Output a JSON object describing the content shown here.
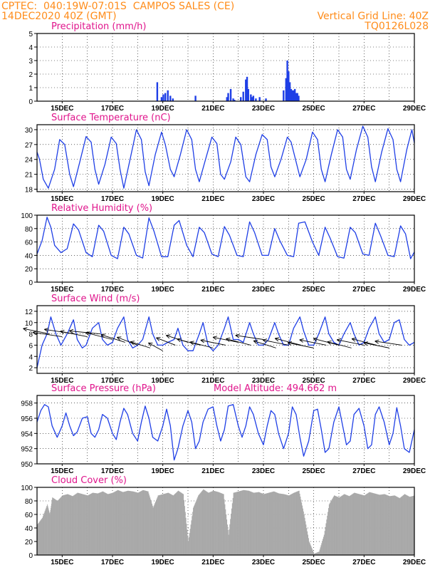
{
  "header": {
    "line1": "CPTEC:  040:19W-07:01S  CAMPOS SALES (CE)",
    "line2": "14DEC2020 40Z (GMT)",
    "grid_note": "Vertical Grid Line: 40Z",
    "code": "TQ0126L028"
  },
  "model_altitude": "Model Altitude: 494.662 m",
  "date_labels": [
    "15DEC",
    "17DEC",
    "19DEC",
    "21DEC",
    "23DEC",
    "25DEC",
    "27DEC",
    "29DEC"
  ],
  "colors": {
    "line": "#1f3fe6",
    "cloud": "#a9a9a9",
    "title": "#e0158c",
    "header": "#ff8c1a",
    "grid": "#000000"
  },
  "chart_data": [
    {
      "id": "precipitation",
      "type": "bar",
      "title": "Precipitation (mm/h)",
      "x_unit": "days since 14DEC2020",
      "xlim": [
        0,
        15
      ],
      "ylim": [
        0,
        5
      ],
      "yticks": [
        0,
        1,
        2,
        3,
        4,
        5
      ],
      "grid": true,
      "x": [
        4.78,
        4.95,
        5.02,
        5.1,
        5.2,
        5.3,
        5.4,
        6.3,
        7.55,
        7.6,
        7.7,
        7.8,
        7.85,
        8.1,
        8.2,
        8.3,
        8.35,
        8.4,
        8.5,
        8.55,
        8.6,
        8.7,
        8.85,
        9.1,
        9.8,
        9.9,
        9.95,
        10.0,
        10.05,
        10.1,
        10.15,
        10.2,
        10.25,
        10.3,
        10.35,
        10.4
      ],
      "values": [
        1.4,
        0.3,
        0.5,
        0.6,
        0.8,
        0.4,
        0.2,
        0.4,
        0.3,
        0.6,
        0.9,
        0.2,
        0.1,
        0.3,
        0.7,
        1.6,
        1.8,
        0.9,
        0.5,
        0.3,
        0.4,
        0.2,
        0.3,
        0.2,
        0.8,
        1.7,
        3.0,
        2.2,
        1.4,
        0.9,
        0.8,
        0.8,
        0.9,
        0.6,
        0.6,
        0.4
      ]
    },
    {
      "id": "temperature",
      "type": "line",
      "title": "Surface Temperature (nC)",
      "xlim": [
        0,
        15
      ],
      "ylim": [
        17.5,
        31
      ],
      "yticks": [
        18,
        21,
        24,
        27,
        30
      ],
      "grid": true,
      "series": [
        {
          "x": [
            0,
            0.1,
            0.25,
            0.45,
            0.7,
            0.9,
            1.1,
            1.3,
            1.45,
            1.7,
            1.95,
            2.15,
            2.3,
            2.45,
            2.7,
            2.95,
            3.15,
            3.3,
            3.45,
            3.7,
            3.95,
            4.15,
            4.3,
            4.45,
            4.7,
            4.95,
            5.1,
            5.3,
            5.45,
            5.7,
            5.95,
            6.15,
            6.3,
            6.45,
            6.7,
            6.95,
            7.15,
            7.3,
            7.45,
            7.7,
            7.9,
            8.1,
            8.3,
            8.45,
            8.7,
            8.95,
            9.15,
            9.3,
            9.45,
            9.7,
            9.95,
            10.1,
            10.3,
            10.45,
            10.7,
            10.95,
            11.15,
            11.3,
            11.45,
            11.7,
            11.95,
            12.15,
            12.3,
            12.45,
            12.7,
            12.95,
            13.15,
            13.3,
            13.45,
            13.7,
            13.95,
            14.15,
            14.3,
            14.45,
            14.7,
            14.9,
            15
          ],
          "values": [
            25.5,
            24,
            20,
            18.2,
            22,
            28,
            27,
            21,
            18.5,
            23.5,
            28.6,
            27.5,
            22,
            19,
            23,
            28.5,
            27.2,
            22,
            18.2,
            24,
            30,
            28,
            21.5,
            18.7,
            25,
            29.5,
            27,
            22,
            20.5,
            25,
            30,
            28,
            22,
            19.5,
            24,
            28.5,
            27.2,
            21,
            20,
            23.5,
            28.5,
            27,
            20.5,
            19.5,
            25,
            29,
            28,
            22.5,
            20.5,
            24,
            28.5,
            27.5,
            23.5,
            20.5,
            24,
            29.5,
            28,
            22,
            19.5,
            25,
            30,
            28.5,
            22,
            20,
            26,
            30.7,
            28.5,
            22.5,
            19.5,
            25.5,
            30.2,
            28,
            22,
            19.5,
            26,
            30,
            27.3
          ]
        }
      ]
    },
    {
      "id": "humidity",
      "type": "line",
      "title": "Relative Humidity (%)",
      "xlim": [
        0,
        15
      ],
      "ylim": [
        0,
        100
      ],
      "yticks": [
        0,
        20,
        40,
        60,
        80,
        100
      ],
      "grid": true,
      "series": [
        {
          "x": [
            0,
            0.2,
            0.4,
            0.55,
            0.7,
            0.95,
            1.2,
            1.45,
            1.65,
            1.95,
            2.2,
            2.45,
            2.65,
            2.95,
            3.2,
            3.45,
            3.65,
            3.95,
            4.2,
            4.45,
            4.65,
            4.95,
            5.2,
            5.45,
            5.65,
            5.95,
            6.2,
            6.45,
            6.65,
            6.95,
            7.2,
            7.45,
            7.65,
            7.95,
            8.2,
            8.45,
            8.65,
            8.95,
            9.2,
            9.45,
            9.65,
            9.95,
            10.2,
            10.4,
            10.65,
            10.95,
            11.2,
            11.45,
            11.65,
            11.95,
            12.2,
            12.45,
            12.65,
            12.95,
            13.2,
            13.45,
            13.65,
            13.95,
            14.2,
            14.45,
            14.65,
            14.85,
            15
          ],
          "values": [
            42,
            62,
            97,
            82,
            55,
            44,
            50,
            87,
            78,
            44,
            38,
            85,
            76,
            40,
            35,
            82,
            72,
            40,
            36,
            96,
            76,
            38,
            38,
            85,
            92,
            55,
            38,
            82,
            74,
            42,
            38,
            83,
            70,
            40,
            38,
            90,
            74,
            40,
            40,
            80,
            62,
            40,
            38,
            88,
            90,
            60,
            40,
            82,
            66,
            38,
            36,
            82,
            74,
            42,
            40,
            88,
            70,
            40,
            38,
            84,
            72,
            35,
            45
          ]
        }
      ]
    },
    {
      "id": "wind",
      "type": "line",
      "title": "Surface Wind (m/s)",
      "xlim": [
        0,
        15
      ],
      "ylim": [
        1,
        13
      ],
      "yticks": [
        2,
        4,
        6,
        8,
        10,
        12
      ],
      "grid": true,
      "series": [
        {
          "x": [
            0,
            0.2,
            0.4,
            0.55,
            0.75,
            0.95,
            1.2,
            1.45,
            1.6,
            1.8,
            1.95,
            2.2,
            2.45,
            2.6,
            2.8,
            3.0,
            3.2,
            3.45,
            3.6,
            3.8,
            4.0,
            4.2,
            4.45,
            4.6,
            4.8,
            5.0,
            5.2,
            5.45,
            5.6,
            5.8,
            6.0,
            6.2,
            6.45,
            6.6,
            6.8,
            7.0,
            7.2,
            7.45,
            7.6,
            7.8,
            8.0,
            8.2,
            8.45,
            8.6,
            8.8,
            9.0,
            9.2,
            9.45,
            9.6,
            9.8,
            10.0,
            10.2,
            10.45,
            10.6,
            10.8,
            11.0,
            11.2,
            11.45,
            11.6,
            11.8,
            12.0,
            12.2,
            12.45,
            12.6,
            12.8,
            13.0,
            13.2,
            13.45,
            13.6,
            13.8,
            14.0,
            14.2,
            14.4,
            14.6,
            14.8,
            15
          ],
          "values": [
            2,
            6,
            8,
            11,
            8,
            6,
            8,
            10.5,
            7,
            5.5,
            6,
            9,
            10,
            7,
            6,
            6.5,
            9,
            11,
            7,
            5.5,
            6,
            7,
            11,
            8,
            6,
            6,
            6.5,
            7,
            9,
            6,
            5,
            5,
            8,
            10,
            6,
            5,
            6,
            9,
            11,
            7,
            7,
            6.5,
            10,
            8,
            6,
            6,
            7,
            10,
            8,
            6,
            6,
            9,
            11,
            8.5,
            6,
            6,
            8,
            11,
            8,
            6.5,
            6,
            8,
            10,
            8,
            6,
            6.5,
            9,
            11,
            8,
            6.5,
            7,
            10,
            10.5,
            7,
            6,
            6.5
          ]
        }
      ],
      "wind_vectors": {
        "x": [
          0.5,
          1.0,
          1.5,
          2.0,
          2.5,
          3.0,
          3.5,
          4.0,
          4.5,
          5.0,
          5.5,
          6.0,
          6.5,
          7.0,
          7.5,
          8.0,
          8.5,
          9.0,
          9.5,
          10.0,
          10.5,
          11.0,
          11.5,
          12.0,
          12.5,
          13.0,
          13.5,
          14.0,
          14.5
        ],
        "y": [
          8,
          7.5,
          8,
          7.5,
          8,
          7,
          6.5,
          6,
          5.5,
          5,
          6,
          6.5,
          6,
          5.5,
          6,
          6.5,
          6,
          7,
          5.5,
          6,
          6,
          5.5,
          6,
          6,
          5.5,
          6,
          6,
          5.5,
          6
        ],
        "speed": [
          7.6,
          8.2,
          8.5,
          7.8,
          8.4,
          8.0,
          7.5,
          6.8,
          6.2,
          5.5,
          6.3,
          6.8,
          7.0,
          6.9,
          7.2,
          7.3,
          7.4,
          7.8,
          7.0,
          7.4,
          7.8,
          7.5,
          7.7,
          7.6,
          7.2,
          7.8,
          7.4,
          7.3,
          7.5
        ],
        "dir_deg": [
          110,
          105,
          105,
          110,
          100,
          115,
          120,
          125,
          120,
          135,
          125,
          120,
          115,
          115,
          110,
          110,
          115,
          105,
          120,
          110,
          115,
          110,
          110,
          115,
          115,
          110,
          115,
          110,
          105
        ]
      }
    },
    {
      "id": "pressure",
      "type": "line",
      "title": "Surface Pressure (hPa)",
      "xlim": [
        0,
        15
      ],
      "ylim": [
        950,
        959
      ],
      "yticks": [
        950,
        952,
        954,
        956,
        958
      ],
      "grid": true,
      "series": [
        {
          "x": [
            0,
            0.15,
            0.3,
            0.45,
            0.6,
            0.8,
            1.0,
            1.15,
            1.3,
            1.45,
            1.6,
            1.8,
            2.0,
            2.15,
            2.3,
            2.45,
            2.6,
            2.8,
            3.0,
            3.15,
            3.3,
            3.45,
            3.6,
            3.8,
            4.0,
            4.15,
            4.3,
            4.45,
            4.6,
            4.8,
            5.0,
            5.15,
            5.3,
            5.45,
            5.6,
            5.8,
            6.0,
            6.15,
            6.3,
            6.45,
            6.6,
            6.8,
            7.0,
            7.15,
            7.3,
            7.45,
            7.6,
            7.8,
            8.0,
            8.15,
            8.3,
            8.45,
            8.6,
            8.8,
            9.0,
            9.15,
            9.3,
            9.45,
            9.6,
            9.8,
            10.0,
            10.15,
            10.3,
            10.45,
            10.6,
            10.8,
            11.0,
            11.15,
            11.3,
            11.45,
            11.6,
            11.8,
            12.0,
            12.15,
            12.3,
            12.45,
            12.6,
            12.8,
            13.0,
            13.15,
            13.3,
            13.45,
            13.6,
            13.8,
            14.0,
            14.15,
            14.3,
            14.45,
            14.6,
            14.8,
            15
          ],
          "values": [
            955.5,
            957,
            957.8,
            957.5,
            955,
            953.5,
            955,
            956.7,
            955,
            953.7,
            954.2,
            956,
            956.2,
            954,
            953.5,
            954.5,
            956.5,
            956,
            954,
            953.2,
            955.5,
            957.3,
            956.5,
            954,
            953,
            955.5,
            957.6,
            956,
            953.5,
            953,
            955,
            957.2,
            955,
            950.5,
            952,
            955,
            957,
            955.5,
            952,
            953,
            955.5,
            957.2,
            957.5,
            955,
            953,
            954.5,
            957.6,
            957.8,
            955,
            953.5,
            955,
            957.5,
            956.5,
            954,
            952.5,
            955,
            957,
            956.5,
            954,
            952,
            954,
            957.5,
            956.5,
            953.5,
            951,
            953,
            957,
            957.2,
            954.5,
            951.5,
            952,
            955.5,
            957.5,
            955,
            952.5,
            953,
            956.5,
            957.3,
            955,
            952,
            952.5,
            956.5,
            957.5,
            955.5,
            952.5,
            954,
            957.4,
            955,
            952,
            951.5,
            954.5
          ]
        }
      ]
    },
    {
      "id": "cloud_cover",
      "type": "area",
      "title": "Cloud Cover (%)",
      "xlim": [
        0,
        15
      ],
      "ylim": [
        0,
        100
      ],
      "yticks": [
        0,
        20,
        40,
        60,
        80,
        100
      ],
      "grid": true,
      "series": [
        {
          "x": [
            0,
            0.2,
            0.4,
            0.5,
            0.6,
            0.8,
            1.0,
            1.2,
            1.4,
            1.6,
            1.8,
            2.0,
            2.2,
            2.4,
            2.6,
            2.8,
            3.0,
            3.2,
            3.4,
            3.6,
            3.8,
            4.0,
            4.2,
            4.4,
            4.6,
            4.8,
            5.0,
            5.2,
            5.4,
            5.6,
            5.8,
            6.0,
            6.2,
            6.4,
            6.6,
            6.8,
            7.0,
            7.2,
            7.4,
            7.6,
            7.8,
            8.0,
            8.2,
            8.4,
            8.6,
            8.8,
            9.0,
            9.2,
            9.4,
            9.6,
            9.8,
            10.0,
            10.2,
            10.4,
            10.6,
            10.8,
            11.0,
            11.2,
            11.4,
            11.6,
            11.8,
            12.0,
            12.2,
            12.4,
            12.6,
            12.8,
            13.0,
            13.2,
            13.4,
            13.6,
            13.8,
            14.0,
            14.2,
            14.4,
            14.6,
            14.8,
            15
          ],
          "values": [
            45,
            55,
            75,
            60,
            85,
            80,
            88,
            90,
            87,
            92,
            90,
            88,
            92,
            91,
            94,
            90,
            92,
            96,
            93,
            95,
            94,
            92,
            96,
            94,
            70,
            88,
            90,
            92,
            88,
            95,
            90,
            20,
            70,
            88,
            97,
            92,
            95,
            93,
            90,
            30,
            92,
            94,
            96,
            95,
            92,
            93,
            90,
            92,
            94,
            91,
            90,
            88,
            92,
            95,
            60,
            20,
            2,
            5,
            30,
            75,
            88,
            85,
            90,
            87,
            92,
            90,
            88,
            93,
            91,
            89,
            90,
            87,
            88,
            84,
            90,
            86,
            88
          ]
        }
      ]
    }
  ]
}
